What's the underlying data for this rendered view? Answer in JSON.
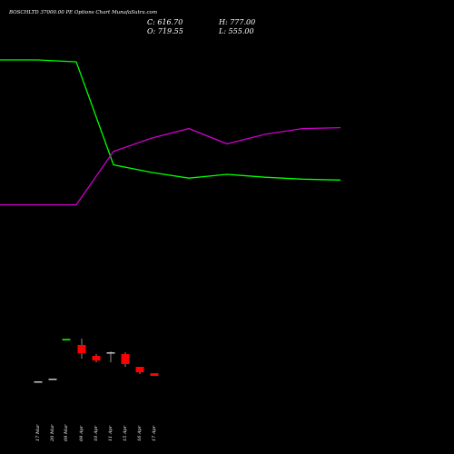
{
  "header": {
    "title": "BOSCHLTD 37000.00  PE Options  Chart MunafaSutra.com",
    "close": "C: 616.70",
    "high": "H: 777.00",
    "open": "O: 719.55",
    "low": "L: 555.00"
  },
  "colors": {
    "background": "#000000",
    "green_line": "#00ff00",
    "purple_line": "#cc00cc",
    "up_candle": "#00cc00",
    "down_candle": "#ff0000",
    "neutral_candle": "#c8c8c8",
    "wick": "#c8c8c8"
  },
  "chart_data": {
    "type": "line",
    "x": [
      "",
      "17 Mar",
      "20 Mar",
      "",
      "09 Apr",
      "10 Apr",
      "11 Apr",
      "15 Apr",
      "16 Apr",
      "17 Apr"
    ],
    "series": [
      {
        "values": [
          100,
          100,
          99,
          45,
          41,
          38,
          40,
          38.5,
          37.5,
          37
        ]
      },
      {
        "values": [
          24,
          24,
          24,
          52,
          59,
          64,
          56,
          61,
          64,
          64.5
        ]
      }
    ],
    "ylim": [
      0,
      110
    ],
    "candles": [
      {
        "label": "17 Mar",
        "open": 50,
        "close": 50,
        "high": 50,
        "low": 50,
        "color": "neutral"
      },
      {
        "label": "20 Mar",
        "open": 53,
        "close": 53,
        "high": 53,
        "low": 53,
        "color": "neutral"
      },
      {
        "label": "09 Mar",
        "open": 95,
        "close": 97,
        "high": 97,
        "low": 95,
        "color": "up"
      },
      {
        "label": "09 Apr",
        "open": 90,
        "close": 81,
        "high": 97,
        "low": 75,
        "color": "down"
      },
      {
        "label": "10 Apr",
        "open": 78,
        "close": 73,
        "high": 80,
        "low": 71,
        "color": "down"
      },
      {
        "label": "11 Apr",
        "open": 81,
        "close": 82,
        "high": 83,
        "low": 71,
        "color": "neutral"
      },
      {
        "label": "15 Apr",
        "open": 80,
        "close": 69,
        "high": 82,
        "low": 66,
        "color": "down"
      },
      {
        "label": "16 Apr",
        "open": 66,
        "close": 60,
        "high": 66,
        "low": 58,
        "color": "down"
      },
      {
        "label": "17 Apr",
        "open": 59,
        "close": 56,
        "high": 59,
        "low": 56,
        "color": "down"
      }
    ],
    "candle_ylim": [
      0,
      130
    ],
    "x_tick_labels": [
      "17 Mar",
      "20 Mar",
      "09 Mar",
      "09 Apr",
      "10 Apr",
      "11 Apr",
      "15 Apr",
      "16 Apr",
      "17 Apr"
    ],
    "grid": false,
    "legend": "none"
  }
}
